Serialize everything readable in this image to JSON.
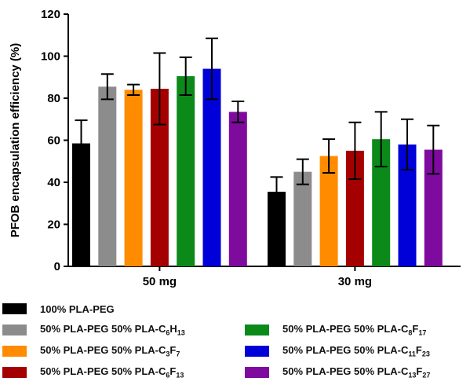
{
  "chart_data": {
    "type": "bar",
    "ylabel": "PFOB encapsulation efficiency (%)",
    "ylim": [
      0,
      120
    ],
    "yticks": [
      "0",
      "20",
      "40",
      "60",
      "80",
      "100",
      "120"
    ],
    "categories": [
      "50 mg",
      "30 mg"
    ],
    "grid": false,
    "legend_position": "bottom",
    "series": [
      {
        "name": "100% PLA-PEG",
        "name_parts": [
          [
            "100% PLA-PEG",
            ""
          ]
        ],
        "color": "#000000",
        "values": [
          58.5,
          35.5
        ],
        "errors": [
          11,
          7
        ]
      },
      {
        "name": "50% PLA-PEG 50% PLA-C6H13",
        "name_parts": [
          [
            "50% PLA-PEG 50% PLA-C",
            ""
          ],
          [
            "6",
            "sub"
          ],
          [
            "H",
            ""
          ],
          [
            "13",
            "sub"
          ]
        ],
        "color": "#8c8c8c",
        "values": [
          85.5,
          45
        ],
        "errors": [
          6,
          6
        ]
      },
      {
        "name": "50% PLA-PEG 50% PLA-C3F7",
        "name_parts": [
          [
            "50% PLA-PEG 50% PLA-C",
            ""
          ],
          [
            "3",
            "sub"
          ],
          [
            "F",
            ""
          ],
          [
            "7",
            "sub"
          ]
        ],
        "color": "#ff8c00",
        "values": [
          84,
          52.5
        ],
        "errors": [
          2.5,
          8
        ]
      },
      {
        "name": "50% PLA-PEG 50% PLA-C6F13",
        "name_parts": [
          [
            "50% PLA-PEG 50% PLA-C",
            ""
          ],
          [
            "6",
            "sub"
          ],
          [
            "F",
            ""
          ],
          [
            "13",
            "sub"
          ]
        ],
        "color": "#a50000",
        "values": [
          84.5,
          55
        ],
        "errors": [
          17,
          13.5
        ]
      },
      {
        "name": "50% PLA-PEG 50% PLA-C8F17",
        "name_parts": [
          [
            "50% PLA-PEG 50% PLA-C",
            ""
          ],
          [
            "8",
            "sub"
          ],
          [
            "F",
            ""
          ],
          [
            "17",
            "sub"
          ]
        ],
        "color": "#0b8a1a",
        "values": [
          90.5,
          60.5
        ],
        "errors": [
          9,
          13
        ]
      },
      {
        "name": "50% PLA-PEG 50% PLA-C11F23",
        "name_parts": [
          [
            "50% PLA-PEG 50% PLA-C",
            ""
          ],
          [
            "11",
            "sub"
          ],
          [
            "F",
            ""
          ],
          [
            "23",
            "sub"
          ]
        ],
        "color": "#0000d8",
        "values": [
          94,
          58
        ],
        "errors": [
          14.5,
          12
        ]
      },
      {
        "name": "50% PLA-PEG 50% PLA-C13F27",
        "name_parts": [
          [
            "50% PLA-PEG 50% PLA-C",
            ""
          ],
          [
            "13",
            "sub"
          ],
          [
            "F",
            ""
          ],
          [
            "27",
            "sub"
          ]
        ],
        "color": "#7e0a9e",
        "values": [
          73.5,
          55.5
        ],
        "errors": [
          5,
          11.5
        ]
      }
    ]
  }
}
